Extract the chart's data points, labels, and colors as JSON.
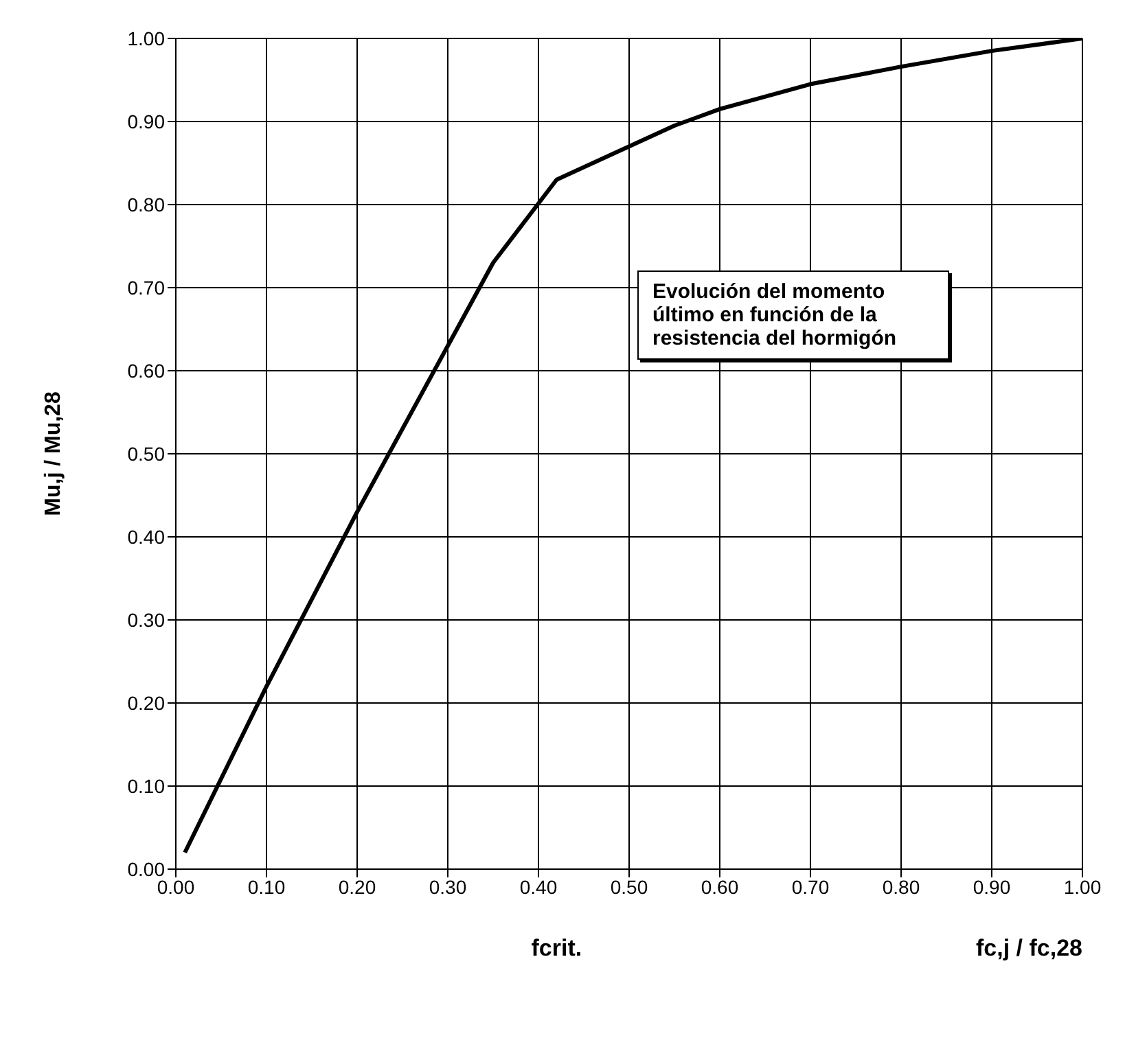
{
  "chart_data": {
    "type": "line",
    "xlabel": "fc,j / fc,28",
    "ylabel": "Mu,j / Mu,28",
    "x": [
      0.01,
      0.1,
      0.2,
      0.3,
      0.35,
      0.42,
      0.5,
      0.55,
      0.6,
      0.7,
      0.8,
      0.9,
      1.0
    ],
    "series": [
      {
        "color": "#000000",
        "values": [
          0.02,
          0.22,
          0.43,
          0.63,
          0.73,
          0.83,
          0.87,
          0.895,
          0.915,
          0.945,
          0.966,
          0.985,
          1.0
        ]
      }
    ],
    "xlim": [
      0,
      1
    ],
    "ylim": [
      0,
      1
    ],
    "xticks": [
      {
        "value": 0,
        "label": "0.00"
      },
      {
        "value": 0.1,
        "label": "0.10"
      },
      {
        "value": 0.2,
        "label": "0.20"
      },
      {
        "value": 0.3,
        "label": "0.30"
      },
      {
        "value": 0.4,
        "label": "0.40"
      },
      {
        "value": 0.5,
        "label": "0.50"
      },
      {
        "value": 0.6,
        "label": "0.60"
      },
      {
        "value": 0.7,
        "label": "0.70"
      },
      {
        "value": 0.8,
        "label": "0.80"
      },
      {
        "value": 0.9,
        "label": "0.90"
      },
      {
        "value": 1,
        "label": "1.00"
      }
    ],
    "yticks": [
      {
        "value": 0,
        "label": "0.00"
      },
      {
        "value": 0.1,
        "label": "0.10"
      },
      {
        "value": 0.2,
        "label": "0.20"
      },
      {
        "value": 0.3,
        "label": "0.30"
      },
      {
        "value": 0.4,
        "label": "0.40"
      },
      {
        "value": 0.5,
        "label": "0.50"
      },
      {
        "value": 0.6,
        "label": "0.60"
      },
      {
        "value": 0.7,
        "label": "0.70"
      },
      {
        "value": 0.8,
        "label": "0.80"
      },
      {
        "value": 0.9,
        "label": "0.90"
      },
      {
        "value": 1,
        "label": "1.00"
      }
    ],
    "grid": true,
    "marker": "none",
    "line_style": "solid",
    "annotations": [
      "Evolución del momento último en función de la resistencia del hormigón",
      "fcrit."
    ]
  }
}
